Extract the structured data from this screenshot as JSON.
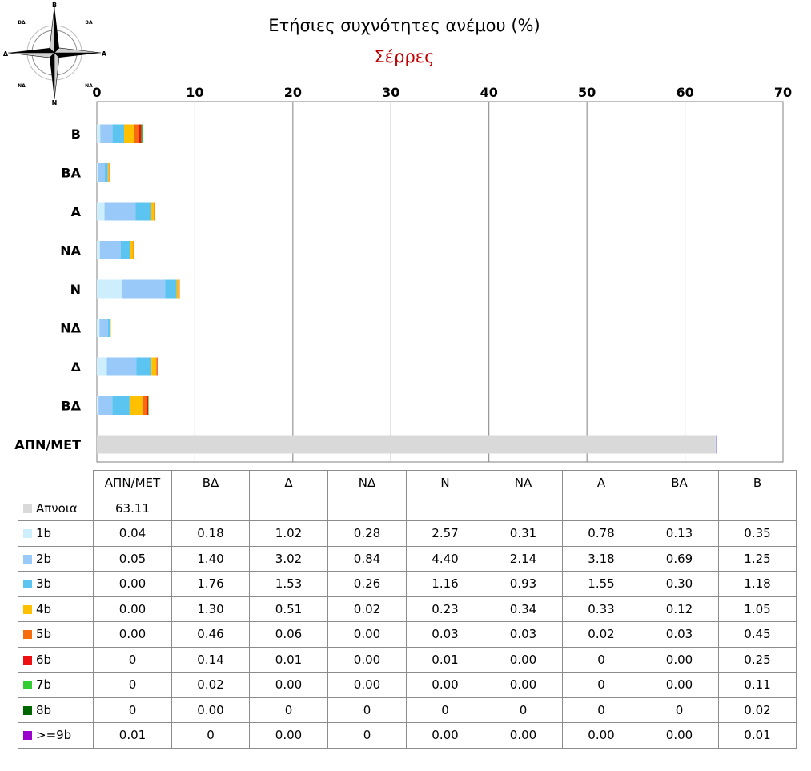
{
  "chart_data": {
    "type": "bar",
    "orientation": "horizontal",
    "stacked": true,
    "title": "Ετήσιες συχνότητες ανέμου (%)",
    "subtitle": "Σέρρες",
    "categories": [
      "ΑΠΝ/ΜΕΤ",
      "ΒΔ",
      "Δ",
      "ΝΔ",
      "Ν",
      "ΝΑ",
      "Α",
      "ΒΑ",
      "Β"
    ],
    "xlim": [
      0,
      70
    ],
    "xticks": [
      "0",
      "10",
      "20",
      "30",
      "40",
      "50",
      "60",
      "70"
    ],
    "x_axis_position": "top",
    "grid": true,
    "series": [
      {
        "name": "Απνοια",
        "color": "#d9d9d9",
        "values": [
          63.11,
          null,
          null,
          null,
          null,
          null,
          null,
          null,
          null
        ],
        "labels": [
          "63.11",
          "",
          "",
          "",
          "",
          "",
          "",
          "",
          ""
        ]
      },
      {
        "name": "1b",
        "color": "#cdeefc",
        "values": [
          0.04,
          0.18,
          1.02,
          0.28,
          2.57,
          0.31,
          0.78,
          0.13,
          0.35
        ],
        "labels": [
          "0.04",
          "0.18",
          "1.02",
          "0.28",
          "2.57",
          "0.31",
          "0.78",
          "0.13",
          "0.35"
        ]
      },
      {
        "name": "2b",
        "color": "#99c9f8",
        "values": [
          0.05,
          1.4,
          3.02,
          0.84,
          4.4,
          2.14,
          3.18,
          0.69,
          1.25
        ],
        "labels": [
          "0.05",
          "1.40",
          "3.02",
          "0.84",
          "4.40",
          "2.14",
          "3.18",
          "0.69",
          "1.25"
        ]
      },
      {
        "name": "3b",
        "color": "#5bc4f1",
        "values": [
          0.0,
          1.76,
          1.53,
          0.26,
          1.16,
          0.93,
          1.55,
          0.3,
          1.18
        ],
        "labels": [
          "0.00",
          "1.76",
          "1.53",
          "0.26",
          "1.16",
          "0.93",
          "1.55",
          "0.30",
          "1.18"
        ]
      },
      {
        "name": "4b",
        "color": "#ffc000",
        "values": [
          0.0,
          1.3,
          0.51,
          0.02,
          0.23,
          0.34,
          0.33,
          0.12,
          1.05
        ],
        "labels": [
          "0.00",
          "1.30",
          "0.51",
          "0.02",
          "0.23",
          "0.34",
          "0.33",
          "0.12",
          "1.05"
        ]
      },
      {
        "name": "5b",
        "color": "#f76d0e",
        "values": [
          0.0,
          0.46,
          0.06,
          0.0,
          0.03,
          0.03,
          0.02,
          0.03,
          0.45
        ],
        "labels": [
          "0.00",
          "0.46",
          "0.06",
          "0.00",
          "0.03",
          "0.03",
          "0.02",
          "0.03",
          "0.45"
        ]
      },
      {
        "name": "6b",
        "color": "#ee1010",
        "values": [
          0,
          0.14,
          0.01,
          0.0,
          0.01,
          0.0,
          0,
          0.0,
          0.25
        ],
        "labels": [
          "0",
          "0.14",
          "0.01",
          "0.00",
          "0.01",
          "0.00",
          "0",
          "0.00",
          "0.25"
        ]
      },
      {
        "name": "7b",
        "color": "#33cc33",
        "values": [
          0,
          0.02,
          0.0,
          0.0,
          0.0,
          0.0,
          0,
          0.0,
          0.11
        ],
        "labels": [
          "0",
          "0.02",
          "0.00",
          "0.00",
          "0.00",
          "0.00",
          "0",
          "0.00",
          "0.11"
        ]
      },
      {
        "name": "8b",
        "color": "#006600",
        "values": [
          0,
          0.0,
          0,
          0,
          0,
          0,
          0,
          0,
          0.02
        ],
        "labels": [
          "0",
          "0.00",
          "0",
          "0",
          "0",
          "0",
          "0",
          "0",
          "0.02"
        ]
      },
      {
        "name": ">=9b",
        "color": "#9900cc",
        "values": [
          0.01,
          0,
          0.0,
          0,
          0.0,
          0.0,
          0.0,
          0.0,
          0.01
        ],
        "labels": [
          "0.01",
          "0",
          "0.00",
          "0",
          "0.00",
          "0.00",
          "0.00",
          "0.00",
          "0.01"
        ]
      }
    ]
  },
  "compass": {
    "labels": {
      "n": "Β",
      "ne": "ΒΑ",
      "e": "Α",
      "se": "ΝΑ",
      "s": "Ν",
      "sw": "ΝΔ",
      "w": "Δ",
      "nw": "ΒΔ"
    },
    "icon": "compass-rose-icon"
  }
}
